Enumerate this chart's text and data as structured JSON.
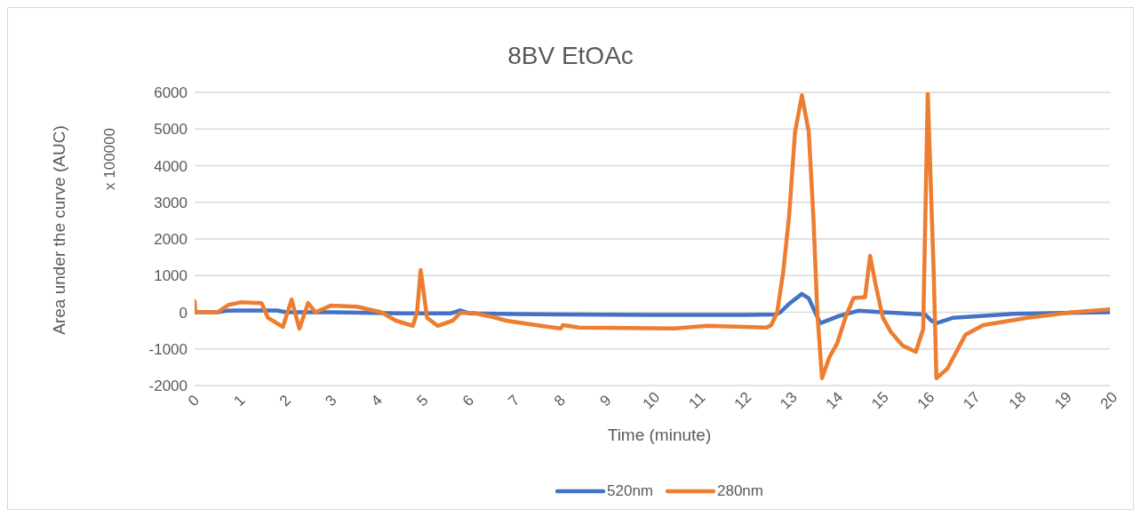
{
  "chart_data": {
    "type": "line",
    "title": "8BV EtOAc",
    "xlabel": "Time (minute)",
    "ylabel": "Area under the curve (AUC)",
    "annotations": [
      "x 100000"
    ],
    "xlim": [
      0,
      20
    ],
    "xticks": [
      0,
      1,
      2,
      3,
      4,
      5,
      6,
      7,
      8,
      9,
      10,
      11,
      12,
      13,
      14,
      15,
      16,
      17,
      18,
      19,
      20
    ],
    "ylim": [
      -2000,
      6000
    ],
    "yticks": [
      -2000,
      -1000,
      0,
      1000,
      2000,
      3000,
      4000,
      5000,
      6000
    ],
    "grid": "y",
    "legend": "bottom",
    "marker": "none",
    "line_style": "solid",
    "series": [
      {
        "name": "520nm",
        "color": "#4472c4",
        "x": [
          0,
          0.5,
          0.7,
          1.0,
          1.8,
          2.0,
          3.0,
          4.5,
          5.6,
          5.8,
          6.0,
          7.0,
          8.0,
          10.0,
          12.0,
          12.7,
          12.8,
          12.99,
          13.27,
          13.42,
          13.67,
          14.06,
          14.5,
          15.04,
          15.96,
          16.1,
          16.21,
          16.58,
          17.9,
          19.0,
          20
        ],
        "values": [
          0,
          0,
          40,
          50,
          50,
          0,
          0,
          -30,
          -30,
          50,
          -30,
          -50,
          -60,
          -70,
          -70,
          -60,
          0,
          230,
          500,
          380,
          -300,
          -110,
          40,
          0,
          -60,
          -230,
          -300,
          -150,
          -40,
          -20,
          0
        ]
      },
      {
        "name": "280nm",
        "color": "#ed7d31",
        "x": [
          0,
          0.02,
          0.5,
          0.62,
          0.74,
          1.0,
          1.46,
          1.5,
          1.6,
          1.93,
          2.12,
          2.29,
          2.48,
          2.64,
          2.97,
          3.55,
          4.08,
          4.4,
          4.77,
          4.86,
          4.94,
          5.08,
          5.31,
          5.64,
          5.8,
          6.1,
          6.48,
          6.81,
          7.46,
          8.0,
          8.05,
          8.4,
          10.5,
          11.2,
          12.5,
          12.6,
          12.73,
          12.86,
          12.99,
          13.12,
          13.27,
          13.42,
          13.52,
          13.61,
          13.71,
          13.87,
          14.04,
          14.24,
          14.4,
          14.65,
          14.76,
          14.88,
          15.04,
          15.21,
          15.47,
          15.76,
          15.92,
          16.02,
          16.15,
          16.21,
          16.45,
          16.84,
          17.23,
          18.2,
          19.18,
          20
        ],
        "values": [
          300,
          0,
          0,
          100,
          200,
          270,
          250,
          150,
          -150,
          -400,
          350,
          -450,
          250,
          0,
          180,
          150,
          0,
          -230,
          -370,
          0,
          1150,
          -150,
          -370,
          -230,
          -20,
          -20,
          -120,
          -230,
          -350,
          -440,
          -350,
          -420,
          -440,
          -370,
          -420,
          -350,
          0,
          1080,
          2620,
          4920,
          5920,
          4920,
          2620,
          -70,
          -1800,
          -1230,
          -850,
          -80,
          390,
          410,
          1540,
          760,
          -150,
          -530,
          -910,
          -1080,
          -460,
          6000,
          1080,
          -1800,
          -1540,
          -620,
          -350,
          -150,
          0,
          80
        ]
      }
    ]
  }
}
